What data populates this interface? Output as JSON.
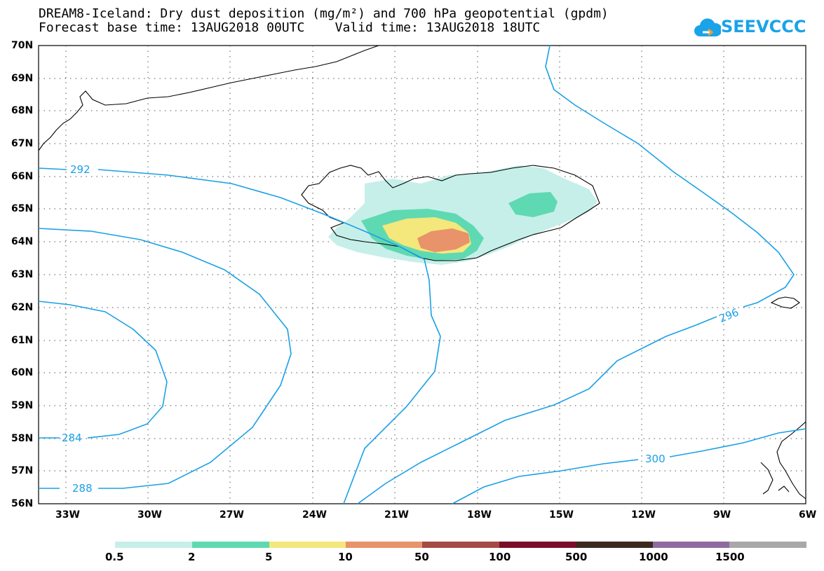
{
  "title": {
    "line1": "DREAM8-Iceland: Dry dust deposition (mg/m²) and 700 hPa geopotential (gpdm)",
    "line2": "Forecast base time: 13AUG2018 00UTC    Valid time: 13AUG2018 18UTC"
  },
  "logo": {
    "text": "SEEVCCC",
    "icon": "cloud-icon"
  },
  "map": {
    "lat_labels": [
      "70N",
      "69N",
      "68N",
      "67N",
      "66N",
      "65N",
      "64N",
      "63N",
      "62N",
      "61N",
      "60N",
      "59N",
      "58N",
      "57N",
      "56N"
    ],
    "lon_labels": [
      "33W",
      "30W",
      "27W",
      "24W",
      "21W",
      "18W",
      "15W",
      "12W",
      "9W",
      "6W"
    ],
    "lat_range": [
      56,
      70
    ],
    "lon_range": [
      -34.5,
      -6
    ],
    "grid": "dotted",
    "contour_labels": [
      "292",
      "296",
      "300",
      "284",
      "288"
    ],
    "contour_color": "#1aa0e6"
  },
  "colorbar": {
    "labels": [
      "0.5",
      "2",
      "5",
      "10",
      "50",
      "100",
      "500",
      "1000",
      "1500"
    ],
    "colors": [
      "#c6efe9",
      "#5fd9b2",
      "#f4e77c",
      "#e8936a",
      "#a44b44",
      "#7a0d2a",
      "#3b2a1e",
      "#8f6aa0",
      "#a8a8a8"
    ]
  }
}
